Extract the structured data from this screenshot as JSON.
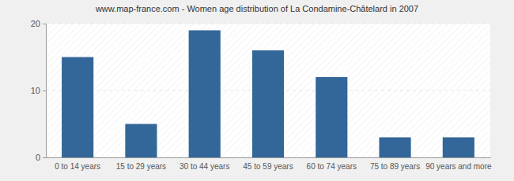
{
  "chart_data": {
    "type": "bar",
    "title": "www.map-france.com - Women age distribution of La Condamine-Châtelard in 2007",
    "categories": [
      "0 to 14 years",
      "15 to 29 years",
      "30 to 44 years",
      "45 to 59 years",
      "60 to 74 years",
      "75 to 89 years",
      "90 years and more"
    ],
    "values": [
      15,
      5,
      19,
      16,
      12,
      3,
      3
    ],
    "color": "#336699",
    "ylim": [
      0,
      20
    ],
    "yticks": [
      0,
      10,
      20
    ],
    "grid": true
  }
}
